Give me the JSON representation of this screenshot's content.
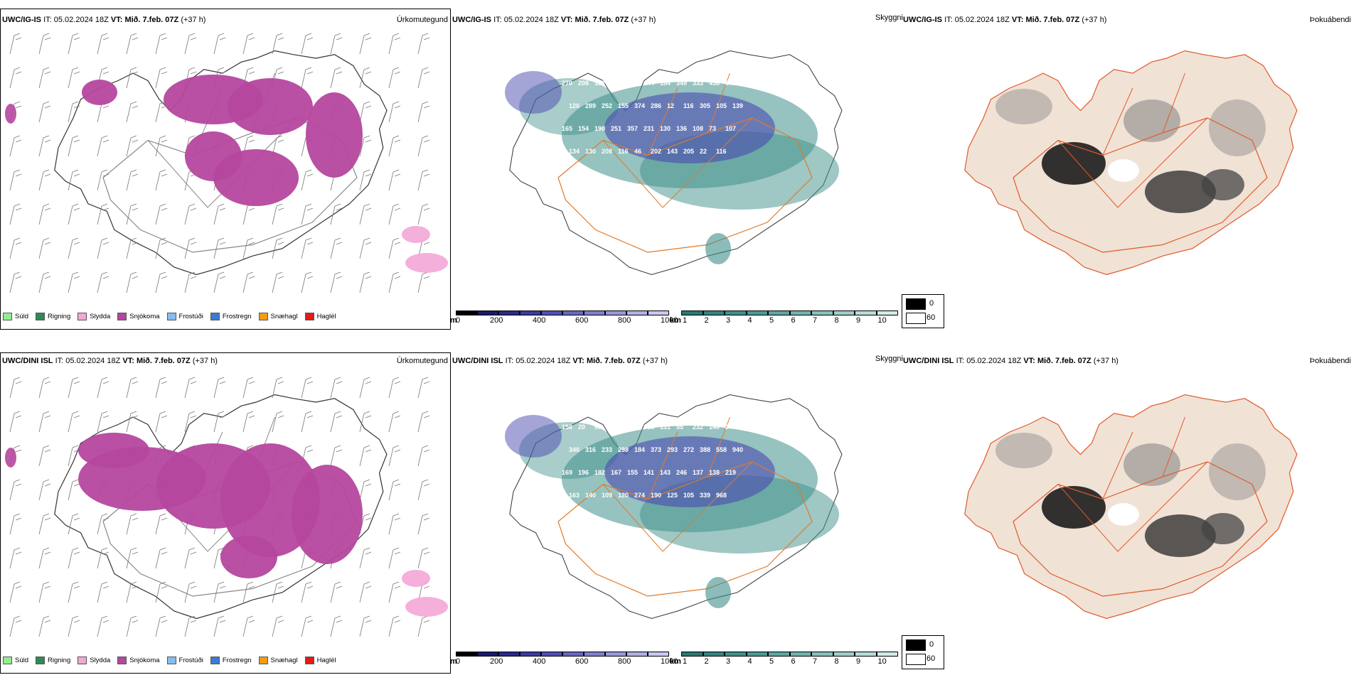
{
  "panels": {
    "top_left": {
      "model": "UWC/IG-IS",
      "it": "05.02.2024 18Z",
      "vt": "Mið. 7.feb. 07Z",
      "lead": "(+37 h)",
      "param": "Úrkomutegund"
    },
    "top_mid": {
      "model": "UWC/IG-IS",
      "it": "05.02.2024 18Z",
      "vt": "Mið. 7.feb. 07Z",
      "lead": "(+37 h)",
      "param": "Skyggni"
    },
    "top_right": {
      "model": "UWC/IG-IS",
      "it": "05.02.2024 18Z",
      "vt": "Mið. 7.feb. 07Z",
      "lead": "(+37 h)",
      "param": "Þokuábendi"
    },
    "bot_left": {
      "model": "UWC/DINI ISL",
      "it": "05.02.2024 18Z",
      "vt": "Mið. 7.feb. 07Z",
      "lead": "(+37 h)",
      "param": "Úrkomutegund"
    },
    "bot_mid": {
      "model": "UWC/DINI ISL",
      "it": "05.02.2024 18Z",
      "vt": "Mið. 7.feb. 07Z",
      "lead": "(+37 h)",
      "param": "Skyggni"
    },
    "bot_right": {
      "model": "UWC/DINI ISL",
      "it": "05.02.2024 18Z",
      "vt": "Mið. 7.feb. 07Z",
      "lead": "(+37 h)",
      "param": "Þokuábendi"
    }
  },
  "labels": {
    "it": "IT:",
    "vt": "VT:"
  },
  "precip_legend": [
    {
      "label": "Súld",
      "color": "#90ee90"
    },
    {
      "label": "Rigning",
      "color": "#2e8b57"
    },
    {
      "label": "Slydda",
      "color": "#f4a6d7"
    },
    {
      "label": "Snjókoma",
      "color": "#b5479e"
    },
    {
      "label": "Frostúði",
      "color": "#87bdf0"
    },
    {
      "label": "Frostregn",
      "color": "#3a7bd5"
    },
    {
      "label": "Snæhagl",
      "color": "#f39c12"
    },
    {
      "label": "Haglél",
      "color": "#e21b1b"
    }
  ],
  "ceiling_bar": {
    "unit": "m",
    "ticks": [
      "0",
      "200",
      "400",
      "600",
      "800",
      "1000"
    ],
    "colors": [
      "#000000",
      "#1a1a6e",
      "#2a2a8c",
      "#3b3ba3",
      "#5050b5",
      "#6868c2",
      "#8080cf",
      "#9898da",
      "#b0b0e5",
      "#c8c8ef"
    ]
  },
  "visibility_bar": {
    "unit": "km",
    "ticks": [
      "1",
      "2",
      "3",
      "4",
      "5",
      "6",
      "7",
      "8",
      "9",
      "10"
    ],
    "colors": [
      "#2a7a73",
      "#338580",
      "#3f908a",
      "#4c9b95",
      "#5ea7a1",
      "#72b3ad",
      "#88c0ba",
      "#a0cec8",
      "#b8dcd7",
      "#d2ebe7"
    ]
  },
  "fog_legend": {
    "high": "0",
    "low": "60"
  },
  "ceiling_values_top": [
    "270",
    "208",
    "192",
    "200",
    "160",
    "144",
    "184",
    "349",
    "333",
    "458",
    "872",
    "120",
    "289",
    "252",
    "155",
    "374",
    "286",
    "12",
    "116",
    "305",
    "105",
    "139",
    "165",
    "154",
    "190",
    "251",
    "357",
    "231",
    "130",
    "136",
    "108",
    "73",
    "107",
    "134",
    "130",
    "208",
    "116",
    "46",
    "202",
    "143",
    "205",
    "22",
    "116"
  ],
  "ceiling_values_bot": [
    "156",
    "20",
    "99",
    "670",
    "250",
    "363",
    "131",
    "55",
    "232",
    "140",
    "240",
    "340",
    "316",
    "233",
    "298",
    "184",
    "373",
    "293",
    "272",
    "388",
    "558",
    "940",
    "169",
    "196",
    "182",
    "167",
    "155",
    "141",
    "143",
    "246",
    "137",
    "138",
    "219",
    "163",
    "140",
    "109",
    "120",
    "274",
    "190",
    "125",
    "105",
    "339",
    "968"
  ],
  "colors": {
    "snow": "#b5479e",
    "sleet": "#f4a6d7",
    "drizzle": "#90ee90",
    "frz": "#87bdf0",
    "rain": "#2e8b57",
    "ceiling": "#4a4ab0",
    "vis": "#3f908a",
    "roads": "#e07a2a",
    "fogland": "#f1e2d6",
    "fogroad": "#e05a2a"
  }
}
